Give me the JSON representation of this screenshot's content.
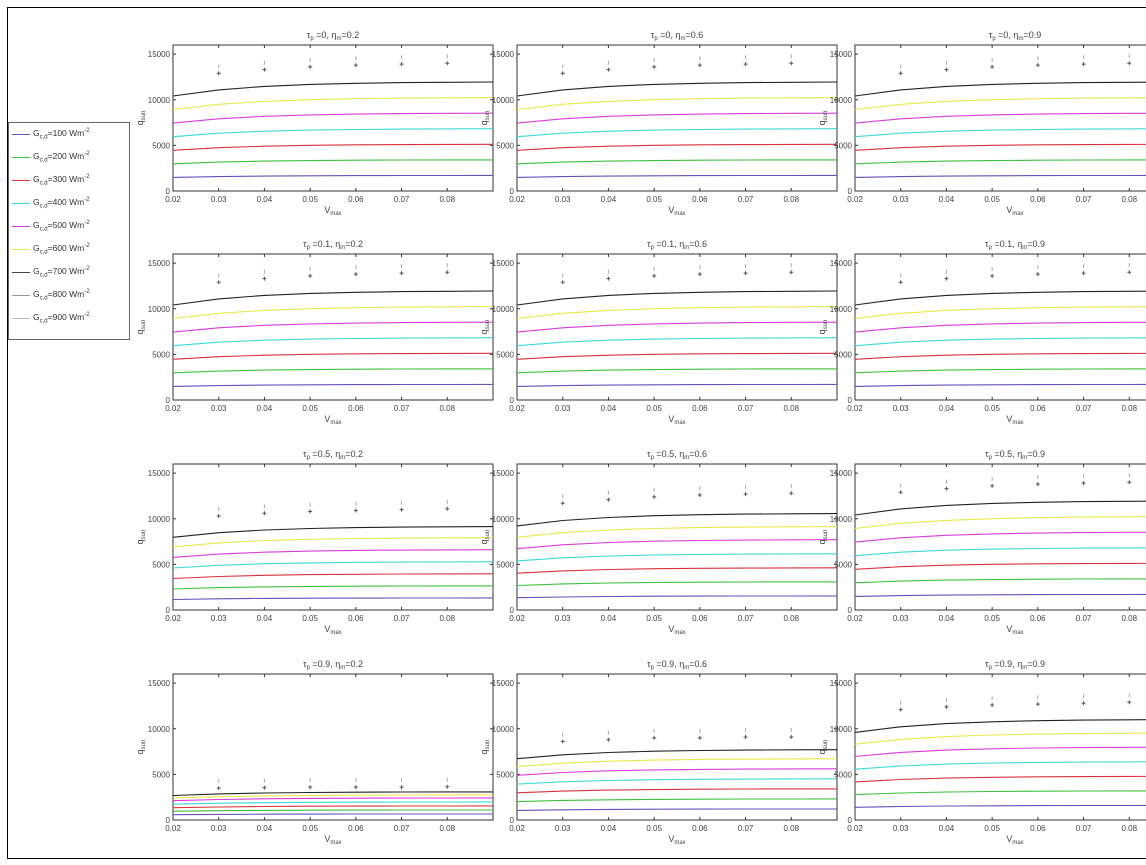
{
  "legend": {
    "items": [
      {
        "label": "G",
        "sub": "c,d",
        "value": "=100 Wm",
        "exp": "-2",
        "color": "#6a4fb8"
      },
      {
        "label": "G",
        "sub": "c,d",
        "value": "=200 Wm",
        "exp": "-2",
        "color": "#3fbf3f"
      },
      {
        "label": "G",
        "sub": "c,d",
        "value": "=300 Wm",
        "exp": "-2",
        "color": "#d8323c"
      },
      {
        "label": "G",
        "sub": "c,d",
        "value": "=400 Wm",
        "exp": "-2",
        "color": "#3cd8d8"
      },
      {
        "label": "G",
        "sub": "c,d",
        "value": "=500 Wm",
        "exp": "-2",
        "color": "#d83cd8"
      },
      {
        "label": "G",
        "sub": "c,d",
        "value": "=600 Wm",
        "exp": "-2",
        "color": "#e8e84a"
      },
      {
        "label": "G",
        "sub": "c,d",
        "value": "=700 Wm",
        "exp": "-2",
        "color": "#444444"
      },
      {
        "label": "G",
        "sub": "c,d",
        "value": "=800 Wm",
        "exp": "-2",
        "color": "#999999"
      },
      {
        "label": "G",
        "sub": "c,d",
        "value": "=900 Wm",
        "exp": "-2",
        "color": "#bbbbbb"
      }
    ]
  },
  "chart_data": {
    "type": "line",
    "xlabel": "V",
    "xlabel_sub": "max",
    "ylabel": "q",
    "ylabel_sub": "sun",
    "xlim": [
      0.02,
      0.09
    ],
    "ylim": [
      0,
      16000
    ],
    "xticks": [
      "0.02",
      "0.03",
      "0.04",
      "0.05",
      "0.06",
      "0.07",
      "0.08"
    ],
    "yticks": [
      "0",
      "5000",
      "10000",
      "15000"
    ],
    "x": [
      0.02,
      0.03,
      0.04,
      0.05,
      0.06,
      0.07,
      0.08,
      0.09
    ],
    "marker_x": [
      0.03,
      0.04,
      0.05,
      0.06,
      0.07,
      0.08
    ],
    "curve_colors": [
      "#6a4fb8",
      "#3fbf3f",
      "#d8323c",
      "#3cd8d8",
      "#d83cd8",
      "#e8e84a",
      "#222222"
    ],
    "panels": [
      {
        "title": "τ_p =0, η_m=0.2",
        "bases": [
          1550,
          3100,
          4650,
          6200,
          7750,
          9300,
          10850
        ],
        "markers": [
          12900,
          13300,
          13600,
          13800,
          13900,
          14000
        ]
      },
      {
        "title": "τ_p =0, η_m=0.6",
        "bases": [
          1550,
          3100,
          4650,
          6200,
          7750,
          9300,
          10850
        ],
        "markers": [
          12900,
          13300,
          13600,
          13800,
          13900,
          14000
        ]
      },
      {
        "title": "τ_p =0, η_m=0.9",
        "bases": [
          1550,
          3100,
          4650,
          6200,
          7750,
          9300,
          10850
        ],
        "markers": [
          12900,
          13300,
          13600,
          13800,
          13900,
          14000
        ]
      },
      {
        "title": "τ_p =0.1, η_m=0.2",
        "bases": [
          1550,
          3100,
          4650,
          6200,
          7750,
          9300,
          10850
        ],
        "markers": [
          12900,
          13300,
          13600,
          13800,
          13900,
          14000
        ]
      },
      {
        "title": "τ_p =0.1, η_m=0.6",
        "bases": [
          1550,
          3100,
          4650,
          6200,
          7750,
          9300,
          10850
        ],
        "markers": [
          12900,
          13300,
          13600,
          13800,
          13900,
          14000
        ]
      },
      {
        "title": "τ_p =0.1, η_m=0.9",
        "bases": [
          1550,
          3100,
          4650,
          6200,
          7750,
          9300,
          10850
        ],
        "markers": [
          12900,
          13300,
          13600,
          13800,
          13900,
          14000
        ]
      },
      {
        "title": "τ_p =0.5, η_m=0.2",
        "bases": [
          1200,
          2400,
          3600,
          4800,
          6000,
          7200,
          8300
        ],
        "markers": [
          10300,
          10600,
          10800,
          10900,
          11000,
          11100
        ]
      },
      {
        "title": "τ_p =0.5, η_m=0.6",
        "bases": [
          1400,
          2800,
          4200,
          5600,
          7000,
          8300,
          9600
        ],
        "markers": [
          11700,
          12100,
          12400,
          12600,
          12700,
          12800
        ]
      },
      {
        "title": "τ_p =0.5, η_m=0.9",
        "bases": [
          1550,
          3100,
          4650,
          6200,
          7750,
          9300,
          10850
        ],
        "markers": [
          12900,
          13300,
          13600,
          13800,
          13900,
          14000
        ]
      },
      {
        "title": "τ_p =0.9, η_m=0.2",
        "bases": [
          600,
          1000,
          1400,
          1800,
          2200,
          2500,
          2800
        ],
        "markers": [
          3500,
          3550,
          3600,
          3600,
          3600,
          3650
        ]
      },
      {
        "title": "τ_p =0.9, η_m=0.6",
        "bases": [
          1100,
          2100,
          3100,
          4100,
          5100,
          6100,
          7000
        ],
        "markers": [
          8600,
          8800,
          9000,
          9000,
          9100,
          9100
        ]
      },
      {
        "title": "τ_p =0.9, η_m=0.9",
        "bases": [
          1450,
          2900,
          4350,
          5800,
          7250,
          8650,
          10000
        ],
        "markers": [
          12100,
          12400,
          12600,
          12700,
          12800,
          12900
        ]
      }
    ]
  }
}
